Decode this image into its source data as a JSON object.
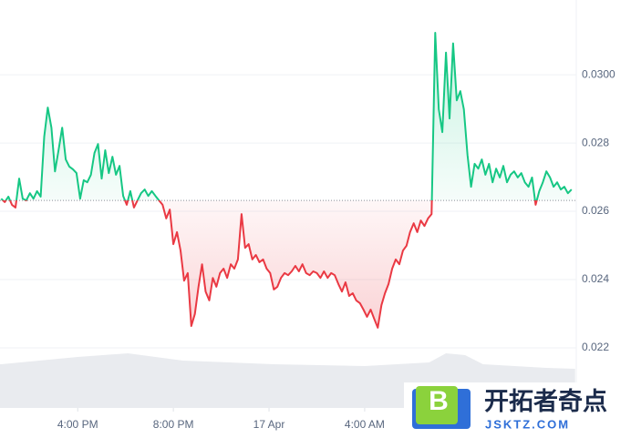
{
  "chart_data": {
    "type": "line",
    "x": [
      12.8,
      12.95,
      13.1,
      13.25,
      13.4,
      13.55,
      13.7,
      13.85,
      14,
      14.15,
      14.3,
      14.45,
      14.6,
      14.75,
      14.9,
      15.05,
      15.2,
      15.35,
      15.5,
      15.65,
      15.8,
      15.95,
      16.1,
      16.25,
      16.4,
      16.55,
      16.7,
      16.85,
      17,
      17.15,
      17.3,
      17.45,
      17.6,
      17.75,
      17.9,
      18.05,
      18.2,
      18.35,
      18.5,
      18.65,
      18.8,
      18.95,
      19.1,
      19.25,
      19.4,
      19.55,
      19.7,
      19.85,
      20,
      20.15,
      20.3,
      20.45,
      20.6,
      20.75,
      20.9,
      21.05,
      21.2,
      21.35,
      21.5,
      21.65,
      21.8,
      21.95,
      22.1,
      22.25,
      22.4,
      22.55,
      22.7,
      22.85,
      23,
      23.15,
      23.3,
      23.45,
      23.6,
      23.75,
      23.9,
      24.05,
      24.2,
      24.35,
      24.5,
      24.65,
      24.8,
      24.95,
      25.1,
      25.25,
      25.4,
      25.55,
      25.7,
      25.85,
      26,
      26.15,
      26.3,
      26.45,
      26.6,
      26.75,
      26.9,
      27.05,
      27.2,
      27.35,
      27.5,
      27.65,
      27.8,
      27.95,
      28.1,
      28.25,
      28.4,
      28.55,
      28.7,
      28.85,
      29,
      29.15,
      29.3,
      29.45,
      29.6,
      29.75,
      29.9,
      30.05,
      30.2,
      30.35,
      30.5,
      30.65,
      30.8,
      30.95,
      31.1,
      31.25,
      31.4,
      31.55,
      31.7,
      31.85,
      32,
      32.15,
      32.3,
      32.45,
      32.6,
      32.75,
      32.9,
      33.05,
      33.2,
      33.35,
      33.5,
      33.65,
      33.8,
      33.95,
      34.1,
      34.25,
      34.4,
      34.55,
      34.7,
      34.85,
      35,
      35.15,
      35.3,
      35.45,
      35.6,
      35.75,
      35.9,
      36.05,
      36.2,
      36.35,
      36.5,
      36.65
    ],
    "values": [
      0.02637,
      0.02627,
      0.02643,
      0.02619,
      0.02611,
      0.02696,
      0.02637,
      0.02632,
      0.02653,
      0.02637,
      0.02659,
      0.02643,
      0.02819,
      0.02904,
      0.02845,
      0.02717,
      0.02779,
      0.02845,
      0.02752,
      0.02731,
      0.02723,
      0.02712,
      0.02637,
      0.02691,
      0.02685,
      0.02707,
      0.02771,
      0.02797,
      0.02696,
      0.02779,
      0.02712,
      0.0276,
      0.02707,
      0.02733,
      0.02645,
      0.02619,
      0.02659,
      0.02611,
      0.02632,
      0.02653,
      0.02664,
      0.02645,
      0.02659,
      0.02645,
      0.02632,
      0.02619,
      0.02579,
      0.02605,
      0.02504,
      0.02539,
      0.02485,
      0.02397,
      0.02419,
      0.02264,
      0.02299,
      0.02379,
      0.02445,
      0.02365,
      0.02339,
      0.02405,
      0.02379,
      0.02419,
      0.02432,
      0.02405,
      0.02445,
      0.02432,
      0.02459,
      0.02592,
      0.02493,
      0.02504,
      0.02459,
      0.02472,
      0.02451,
      0.02459,
      0.02432,
      0.02419,
      0.02371,
      0.02379,
      0.02405,
      0.02419,
      0.02413,
      0.02424,
      0.0244,
      0.02424,
      0.02445,
      0.02419,
      0.02413,
      0.02424,
      0.02419,
      0.02405,
      0.02424,
      0.02405,
      0.02419,
      0.02413,
      0.02387,
      0.02365,
      0.02392,
      0.02352,
      0.0236,
      0.02339,
      0.02331,
      0.02312,
      0.02291,
      0.02312,
      0.02285,
      0.02259,
      0.02325,
      0.0236,
      0.02387,
      0.02432,
      0.02459,
      0.02445,
      0.02485,
      0.02499,
      0.02539,
      0.02565,
      0.02539,
      0.02573,
      0.02557,
      0.02579,
      0.02592,
      0.03123,
      0.02899,
      0.02832,
      0.03065,
      0.02872,
      0.03092,
      0.02925,
      0.02952,
      0.02899,
      0.02765,
      0.02672,
      0.02739,
      0.02725,
      0.02752,
      0.02707,
      0.02739,
      0.02685,
      0.02725,
      0.02699,
      0.02733,
      0.02685,
      0.02707,
      0.02717,
      0.02699,
      0.02712,
      0.02685,
      0.02672,
      0.02699,
      0.02619,
      0.02659,
      0.02685,
      0.02717,
      0.02699,
      0.02672,
      0.02685,
      0.02664,
      0.02672,
      0.02653,
      0.02664
    ],
    "baseline": 0.02632,
    "color_up": "#16c784",
    "color_down": "#ea3943",
    "xlim": [
      12.75,
      36.85
    ],
    "xticks": [
      {
        "value": 16,
        "label": "4:00 PM"
      },
      {
        "value": 20,
        "label": "8:00 PM"
      },
      {
        "value": 24,
        "label": "17 Apr"
      },
      {
        "value": 28,
        "label": "4:00 AM"
      }
    ],
    "ylim": [
      0.02024,
      0.03219
    ],
    "yticks": [
      {
        "value": 0.022,
        "label": "0.022"
      },
      {
        "value": 0.024,
        "label": "0.024"
      },
      {
        "value": 0.026,
        "label": "0.026"
      },
      {
        "value": 0.028,
        "label": "0.028"
      },
      {
        "value": 0.03,
        "label": "0.0300"
      }
    ],
    "grid": true,
    "volume": {
      "x": [
        12.8,
        16,
        18.1,
        20.4,
        24.2,
        28,
        30.7,
        31.4,
        32.2,
        32.95,
        35.6,
        36.8
      ],
      "values": [
        48,
        56,
        60,
        52,
        48,
        46,
        50,
        60,
        58,
        48,
        44,
        43
      ],
      "vlim": [
        0,
        60
      ],
      "color": "#e9ebef"
    }
  },
  "watermark": {
    "logo_letter": "B",
    "title": "开拓者奇点",
    "url": "JSKTZ.COM"
  }
}
